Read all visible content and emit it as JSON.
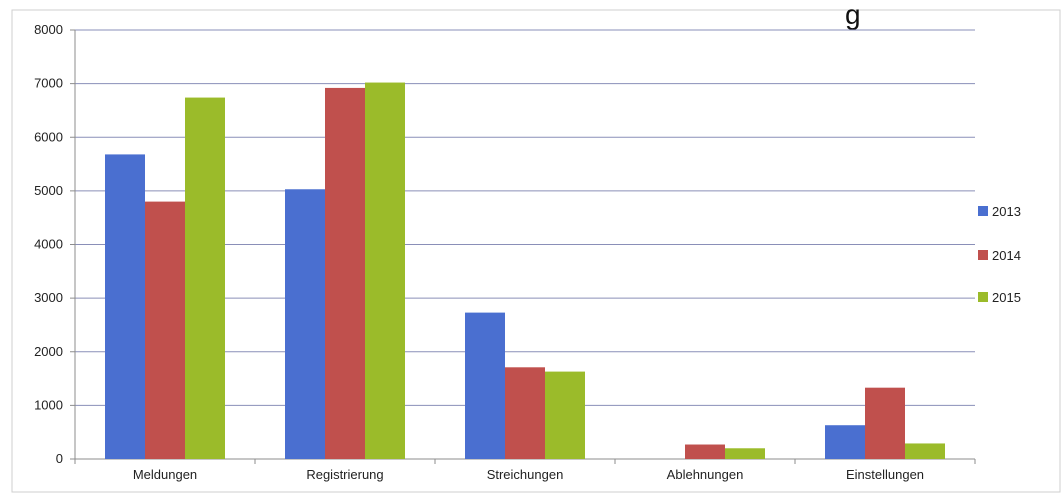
{
  "chart_data": {
    "type": "bar",
    "title_fragment": "g",
    "categories": [
      "Meldungen",
      "Registrierung",
      "Streichungen",
      "Ablehnungen",
      "Einstellungen"
    ],
    "series": [
      {
        "name": "2013",
        "color": "#4a6fd0",
        "values": [
          5680,
          5030,
          2730,
          0,
          630
        ]
      },
      {
        "name": "2014",
        "color": "#c0504d",
        "values": [
          4800,
          6920,
          1710,
          270,
          1330
        ]
      },
      {
        "name": "2015",
        "color": "#9bbb2a",
        "values": [
          6740,
          7020,
          1630,
          200,
          290
        ]
      }
    ],
    "yticks": [
      "0",
      "1000",
      "2000",
      "3000",
      "4000",
      "5000",
      "6000",
      "7000",
      "8000"
    ],
    "ylim": [
      0,
      8000
    ],
    "grid": true,
    "legend_position": "right"
  }
}
